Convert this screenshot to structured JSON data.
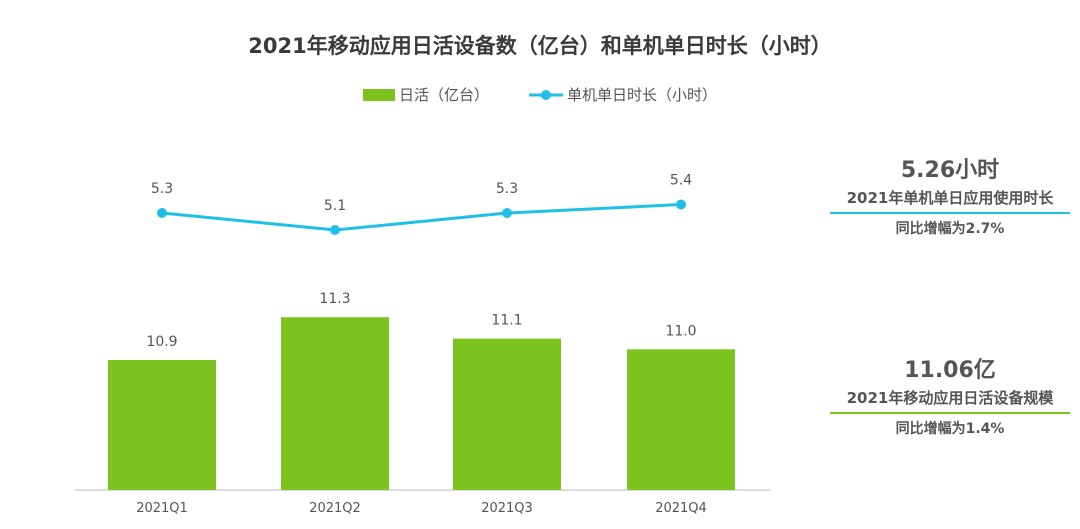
{
  "chart_data": {
    "type": "bar+line",
    "title": "2021年移动应用日活设备数（亿台）和单机单日时长（小时）",
    "categories": [
      "2021Q1",
      "2021Q2",
      "2021Q3",
      "2021Q4"
    ],
    "series": [
      {
        "name": "日活（亿台）",
        "type": "bar",
        "values": [
          10.9,
          11.3,
          11.1,
          11.0
        ],
        "color": "#7dc31d"
      },
      {
        "name": "单机单日时长（小时）",
        "type": "line",
        "values": [
          5.3,
          5.1,
          5.3,
          5.4
        ],
        "color": "#1ec0e8"
      }
    ],
    "legend_position": "top-center",
    "grid": false
  },
  "side": {
    "hours": {
      "value": "5.26小时",
      "label": "2021年单机单日应用使用时长",
      "note": "同比增幅为2.7%",
      "color": "#1ec0e8"
    },
    "devices": {
      "value": "11.06亿",
      "label": "2021年移动应用日活设备规模",
      "note": "同比增幅为1.4%",
      "color": "#7dc31d"
    }
  }
}
